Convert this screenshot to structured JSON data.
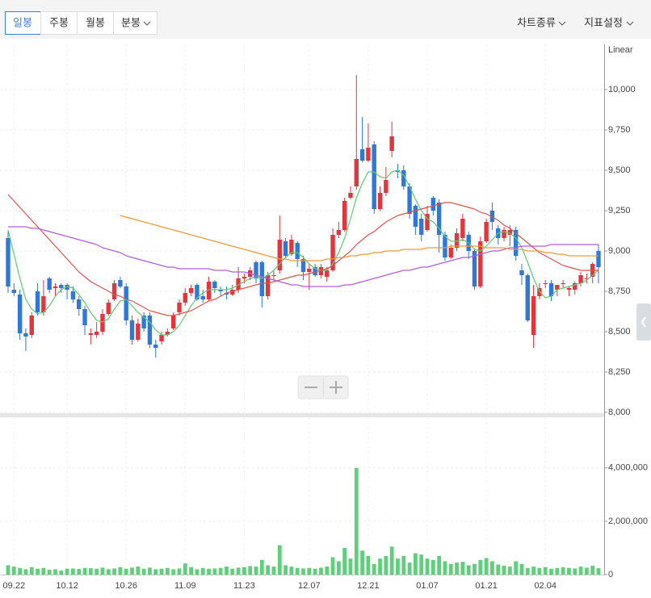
{
  "toolbar": {
    "periods": [
      "일봉",
      "주봉",
      "월봉",
      "분봉"
    ],
    "menus": [
      "차트종류",
      "지표설정"
    ]
  },
  "chart_data": [
    {
      "type": "candlestick",
      "scale_label": "Linear",
      "up_color": "#e2363f",
      "down_color": "#2f78d8",
      "categories": [
        null,
        "09.22",
        null,
        null,
        null,
        null,
        null,
        null,
        null,
        null,
        "10.12",
        null,
        null,
        null,
        null,
        null,
        null,
        null,
        null,
        null,
        "10.26",
        null,
        null,
        null,
        null,
        null,
        null,
        null,
        null,
        null,
        "11.09",
        null,
        null,
        null,
        null,
        null,
        null,
        null,
        null,
        null,
        "11.23",
        null,
        null,
        null,
        null,
        null,
        null,
        null,
        null,
        null,
        null,
        "12.07",
        null,
        null,
        null,
        null,
        null,
        null,
        null,
        null,
        null,
        "12.21",
        null,
        null,
        null,
        null,
        null,
        null,
        null,
        null,
        null,
        "01.07",
        null,
        null,
        null,
        null,
        null,
        null,
        null,
        null,
        null,
        "01.21",
        null,
        null,
        null,
        null,
        null,
        null,
        null,
        null,
        null,
        "02.04",
        null,
        null,
        null,
        null,
        null,
        null,
        null,
        null,
        null
      ],
      "open": [
        9080,
        8760,
        8730,
        8490,
        8480,
        8750,
        8620,
        8830,
        8770,
        8790,
        8790,
        8750,
        8700,
        8640,
        8480,
        8480,
        8500,
        8610,
        8700,
        8820,
        8780,
        8570,
        8450,
        8600,
        8600,
        8420,
        8440,
        8480,
        8520,
        8620,
        8680,
        8740,
        8790,
        8720,
        8700,
        8810,
        8760,
        8740,
        8730,
        8760,
        8830,
        8840,
        8930,
        8930,
        8720,
        8850,
        8880,
        9060,
        8980,
        9050,
        8950,
        8870,
        8900,
        8850,
        8840,
        8880,
        9100,
        9130,
        9330,
        9400,
        9630,
        9560,
        9660,
        9260,
        9360,
        9620,
        9500,
        9500,
        9400,
        9280,
        9200,
        9130,
        9330,
        9300,
        9100,
        8960,
        9020,
        9080,
        9100,
        9000,
        8780,
        9060,
        9250,
        9140,
        9080,
        9100,
        9130,
        8880,
        8850,
        8480,
        8720,
        8800,
        8800,
        8760,
        8800,
        8760,
        8760,
        8800,
        8830,
        8840,
        9000
      ],
      "high": [
        9120,
        8800,
        8760,
        8520,
        8620,
        8800,
        8820,
        8840,
        8800,
        8800,
        8800,
        8780,
        8720,
        8660,
        8520,
        8560,
        8640,
        8700,
        8820,
        8840,
        8800,
        8600,
        8580,
        8620,
        8620,
        8450,
        8500,
        8520,
        8620,
        8700,
        8770,
        8790,
        8800,
        8760,
        8840,
        8820,
        8780,
        8780,
        8790,
        8900,
        8860,
        8900,
        8940,
        8940,
        8870,
        8880,
        9220,
        9080,
        9100,
        9060,
        8970,
        8920,
        8920,
        8920,
        8900,
        9140,
        9180,
        9330,
        9400,
        10090,
        9830,
        9790,
        9680,
        9400,
        9520,
        9800,
        9540,
        9530,
        9420,
        9290,
        9230,
        9280,
        9340,
        9320,
        9120,
        9040,
        9140,
        9230,
        9120,
        9010,
        9090,
        9200,
        9300,
        9160,
        9150,
        9160,
        9150,
        8920,
        8860,
        8790,
        8800,
        8820,
        8820,
        8790,
        8820,
        8780,
        8810,
        8870,
        8860,
        8930,
        9040
      ],
      "low": [
        8740,
        8720,
        8450,
        8380,
        8460,
        8600,
        8600,
        8740,
        8720,
        8740,
        8700,
        8680,
        8600,
        8480,
        8420,
        8460,
        8480,
        8600,
        8690,
        8770,
        8540,
        8420,
        8440,
        8500,
        8400,
        8340,
        8420,
        8470,
        8510,
        8600,
        8660,
        8720,
        8690,
        8680,
        8690,
        8740,
        8720,
        8700,
        8720,
        8740,
        8800,
        8820,
        8800,
        8650,
        8700,
        8820,
        8860,
        8950,
        8970,
        8900,
        8820,
        8760,
        8840,
        8830,
        8810,
        8870,
        9080,
        9120,
        9320,
        9380,
        9550,
        9550,
        9230,
        9250,
        9340,
        9580,
        9450,
        9380,
        9200,
        9100,
        9060,
        9120,
        9220,
        8990,
        8940,
        8950,
        9000,
        9060,
        8950,
        8760,
        8770,
        9050,
        9130,
        9040,
        9060,
        9030,
        8940,
        8790,
        8560,
        8400,
        8700,
        8770,
        8690,
        8720,
        8770,
        8720,
        8730,
        8780,
        8800,
        8800,
        8800
      ],
      "close": [
        8780,
        8740,
        8490,
        8470,
        8600,
        8620,
        8720,
        8760,
        8780,
        8770,
        8760,
        8700,
        8640,
        8540,
        8490,
        8500,
        8610,
        8680,
        8800,
        8780,
        8570,
        8450,
        8550,
        8520,
        8420,
        8400,
        8480,
        8500,
        8600,
        8680,
        8740,
        8770,
        8700,
        8700,
        8810,
        8770,
        8750,
        8730,
        8760,
        8830,
        8840,
        8880,
        8830,
        8720,
        8850,
        8850,
        9070,
        8970,
        9070,
        8950,
        8870,
        8890,
        8850,
        8900,
        8880,
        9100,
        9130,
        9310,
        9360,
        9570,
        9560,
        9640,
        9260,
        9360,
        9440,
        9710,
        9490,
        9400,
        9230,
        9150,
        9100,
        9230,
        9250,
        9100,
        8960,
        9020,
        9110,
        9200,
        9000,
        8780,
        9060,
        9180,
        9180,
        9080,
        9130,
        9130,
        8970,
        8850,
        8570,
        8720,
        8770,
        8800,
        8720,
        8790,
        8800,
        8770,
        8800,
        8850,
        8830,
        8920,
        8900
      ],
      "series": [
        {
          "color": "#5dcb6e",
          "values": [
            9130,
            8980,
            8830,
            8700,
            8640,
            8610,
            8620,
            8660,
            8720,
            8760,
            8780,
            8770,
            8730,
            8680,
            8620,
            8570,
            8560,
            8580,
            8640,
            8690,
            8700,
            8660,
            8620,
            8590,
            8560,
            8510,
            8480,
            8480,
            8500,
            8540,
            8600,
            8660,
            8710,
            8740,
            8760,
            8760,
            8760,
            8760,
            8770,
            8790,
            8810,
            8830,
            8840,
            8830,
            8850,
            8880,
            8920,
            8960,
            8990,
            8990,
            8960,
            8920,
            8890,
            8880,
            8880,
            8920,
            8990,
            9080,
            9200,
            9330,
            9420,
            9490,
            9490,
            9460,
            9450,
            9490,
            9500,
            9470,
            9400,
            9320,
            9250,
            9200,
            9180,
            9140,
            9090,
            9060,
            9060,
            9070,
            9050,
            9010,
            9000,
            9030,
            9070,
            9110,
            9120,
            9110,
            9080,
            9020,
            8930,
            8830,
            8750,
            8710,
            8720,
            8760,
            8770,
            8780,
            8790,
            8800,
            8820,
            8850,
            8880
          ]
        },
        {
          "color": "#e0544c",
          "values": [
            9350,
            9310,
            9270,
            9230,
            9190,
            9150,
            9110,
            9070,
            9030,
            8990,
            8950,
            8910,
            8870,
            8840,
            8810,
            8790,
            8770,
            8750,
            8730,
            8720,
            8700,
            8690,
            8670,
            8650,
            8630,
            8620,
            8610,
            8600,
            8600,
            8610,
            8620,
            8630,
            8650,
            8670,
            8690,
            8700,
            8720,
            8740,
            8750,
            8760,
            8770,
            8780,
            8790,
            8800,
            8800,
            8810,
            8820,
            8830,
            8840,
            8850,
            8850,
            8860,
            8870,
            8880,
            8890,
            8910,
            8940,
            8970,
            9000,
            9040,
            9070,
            9100,
            9120,
            9150,
            9180,
            9200,
            9220,
            9230,
            9240,
            9250,
            9260,
            9270,
            9280,
            9290,
            9300,
            9300,
            9290,
            9280,
            9270,
            9260,
            9240,
            9230,
            9210,
            9190,
            9160,
            9140,
            9110,
            9080,
            9050,
            9020,
            8990,
            8970,
            8950,
            8930,
            8910,
            8900,
            8890,
            8880,
            8880,
            8880,
            8880
          ]
        },
        {
          "color": "#b05de0",
          "values": [
            9150,
            9150,
            9150,
            9150,
            9140,
            9140,
            9130,
            9120,
            9110,
            9100,
            9090,
            9080,
            9070,
            9060,
            9050,
            9040,
            9020,
            9010,
            9000,
            8990,
            8970,
            8960,
            8950,
            8940,
            8930,
            8920,
            8910,
            8900,
            8900,
            8890,
            8890,
            8890,
            8890,
            8890,
            8890,
            8880,
            8880,
            8880,
            8870,
            8870,
            8870,
            8860,
            8850,
            8840,
            8830,
            8820,
            8810,
            8800,
            8790,
            8790,
            8780,
            8780,
            8780,
            8780,
            8780,
            8780,
            8780,
            8790,
            8790,
            8800,
            8810,
            8820,
            8830,
            8840,
            8850,
            8860,
            8870,
            8880,
            8880,
            8890,
            8900,
            8900,
            8910,
            8920,
            8930,
            8940,
            8950,
            8960,
            8960,
            8970,
            8980,
            8990,
            9000,
            9000,
            9010,
            9020,
            9020,
            9030,
            9030,
            9030,
            9030,
            9030,
            9040,
            9040,
            9040,
            9040,
            9040,
            9040,
            9040,
            9040,
            9040
          ]
        },
        {
          "color": "#ef9a3c",
          "values": [
            null,
            null,
            null,
            null,
            null,
            null,
            null,
            null,
            null,
            null,
            null,
            null,
            null,
            null,
            null,
            null,
            null,
            null,
            null,
            9220,
            9210,
            9200,
            9190,
            9180,
            9170,
            9160,
            9150,
            9140,
            9130,
            9120,
            9110,
            9100,
            9090,
            9080,
            9070,
            9060,
            9050,
            9040,
            9030,
            9020,
            9010,
            9000,
            8990,
            8980,
            8970,
            8960,
            8950,
            8950,
            8940,
            8940,
            8940,
            8940,
            8940,
            8940,
            8950,
            8950,
            8960,
            8960,
            8970,
            8970,
            8980,
            8980,
            8990,
            8990,
            9000,
            9000,
            9000,
            9010,
            9010,
            9010,
            9010,
            9020,
            9020,
            9020,
            9020,
            9030,
            9030,
            9030,
            9030,
            9030,
            9030,
            9020,
            9020,
            9020,
            9020,
            9010,
            9010,
            9010,
            9000,
            9000,
            9000,
            8990,
            8990,
            8980,
            8980,
            8970,
            8970,
            8970,
            8970,
            8970,
            8970
          ]
        }
      ],
      "ylim": [
        8000,
        10280
      ],
      "yticks": [
        {
          "value": 8000,
          "label": "8,000"
        },
        {
          "value": 8250,
          "label": "8,250"
        },
        {
          "value": 8500,
          "label": "8,500"
        },
        {
          "value": 8750,
          "label": "8,750"
        },
        {
          "value": 9000,
          "label": "9,000"
        },
        {
          "value": 9250,
          "label": "9,250"
        },
        {
          "value": 9500,
          "label": "9,500"
        },
        {
          "value": 9750,
          "label": "9,750"
        },
        {
          "value": 10000,
          "label": "10,000"
        }
      ],
      "grid": true
    },
    {
      "type": "bar",
      "color": "#5fd07a",
      "values": [
        350000,
        300000,
        250000,
        200000,
        280000,
        220000,
        250000,
        180000,
        200000,
        150000,
        220000,
        230000,
        210000,
        250000,
        240000,
        220000,
        260000,
        200000,
        230000,
        280000,
        220000,
        260000,
        300000,
        220000,
        260000,
        200000,
        220000,
        250000,
        200000,
        230000,
        420000,
        280000,
        200000,
        250000,
        220000,
        230000,
        250000,
        300000,
        220000,
        260000,
        280000,
        320000,
        300000,
        550000,
        350000,
        300000,
        1100000,
        350000,
        300000,
        250000,
        230000,
        250000,
        220000,
        260000,
        300000,
        650000,
        500000,
        1000000,
        600000,
        4000000,
        900000,
        700000,
        400000,
        600000,
        700000,
        1050000,
        600000,
        700000,
        450000,
        800000,
        750000,
        600000,
        550000,
        700000,
        500000,
        400000,
        450000,
        480000,
        350000,
        400000,
        550000,
        620000,
        500000,
        380000,
        330000,
        300000,
        500000,
        400000,
        250000,
        300000,
        250000,
        280000,
        220000,
        250000,
        280000,
        250000,
        230000,
        300000,
        260000,
        330000,
        240000
      ],
      "ylim": [
        0,
        5900000
      ],
      "yticks": [
        0,
        {
          "value": 2000000,
          "label": "2,000,000"
        },
        {
          "value": 4000000,
          "label": "4,000,000"
        }
      ],
      "grid": true
    }
  ]
}
